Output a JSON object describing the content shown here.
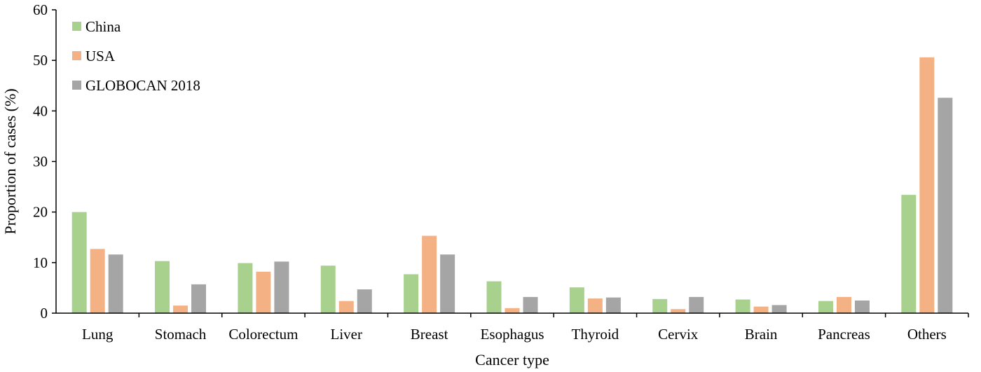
{
  "chart_data": {
    "type": "bar",
    "title": "",
    "xlabel": "Cancer type",
    "ylabel": "Proportion of cases (%)",
    "ylim": [
      0,
      60
    ],
    "yticks": [
      0,
      10,
      20,
      30,
      40,
      50,
      60
    ],
    "grid": false,
    "legend_position": "top-left",
    "categories": [
      "Lung",
      "Stomach",
      "Colorectum",
      "Liver",
      "Breast",
      "Esophagus",
      "Thyroid",
      "Cervix",
      "Brain",
      "Pancreas",
      "Others"
    ],
    "series": [
      {
        "name": "China",
        "color": "#a9d18e",
        "values": [
          20.0,
          10.3,
          9.9,
          9.4,
          7.7,
          6.3,
          5.1,
          2.8,
          2.7,
          2.4,
          23.4
        ]
      },
      {
        "name": "USA",
        "color": "#f4b183",
        "values": [
          12.7,
          1.5,
          8.2,
          2.4,
          15.3,
          1.0,
          2.9,
          0.8,
          1.3,
          3.2,
          50.6
        ]
      },
      {
        "name": "GLOBOCAN 2018",
        "color": "#a5a5a5",
        "values": [
          11.6,
          5.7,
          10.2,
          4.7,
          11.6,
          3.2,
          3.1,
          3.2,
          1.6,
          2.5,
          42.6
        ]
      }
    ]
  }
}
